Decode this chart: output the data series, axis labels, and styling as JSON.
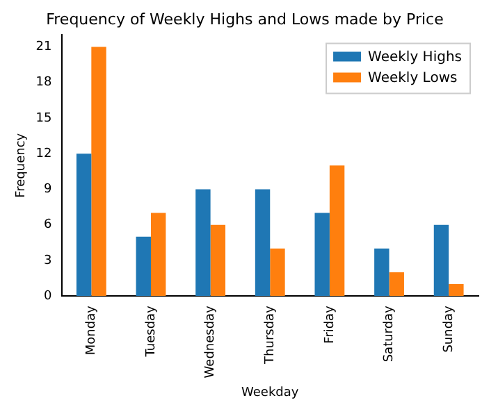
{
  "chart_data": {
    "type": "bar",
    "title": "Frequency of Weekly Highs and Lows made by Price",
    "xlabel": "Weekday",
    "ylabel": "Frequency",
    "categories": [
      "Monday",
      "Tuesday",
      "Wednesday",
      "Thursday",
      "Friday",
      "Saturday",
      "Sunday"
    ],
    "series": [
      {
        "name": "Weekly Highs",
        "color": "#1f77b4",
        "values": [
          12,
          5,
          9,
          9,
          7,
          4,
          6
        ]
      },
      {
        "name": "Weekly Lows",
        "color": "#ff7f0e",
        "values": [
          21,
          7,
          6,
          4,
          11,
          2,
          1
        ]
      }
    ],
    "ylim": [
      0,
      22
    ],
    "yticks": [
      0,
      3,
      6,
      9,
      12,
      15,
      18,
      21
    ],
    "grid": false,
    "legend": "top right"
  }
}
